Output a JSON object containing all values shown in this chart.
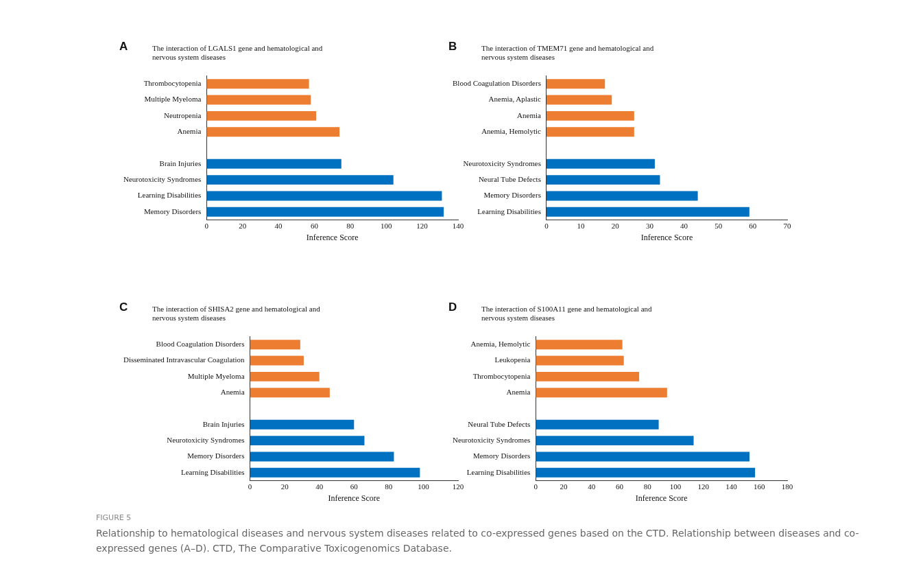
{
  "chart_data": [
    {
      "type": "bar",
      "orientation": "horizontal",
      "title": "The interaction of LGALS1 gene and hematological and nervous system diseases",
      "xlabel": "Inference Score",
      "annotations": [
        "A"
      ],
      "categories": [
        "Thrombocytopenia",
        "Multiple Myeloma",
        "Neutropenia",
        "Anemia",
        null,
        "Brain Injuries",
        "Neurotoxicity Syndromes",
        "Learning Disabilities",
        "Memory Disorders"
      ],
      "values": [
        57,
        58,
        61,
        74,
        null,
        75,
        104,
        131,
        132
      ],
      "colors": [
        "#ed7d31",
        "#ed7d31",
        "#ed7d31",
        "#ed7d31",
        "#0070c0",
        "#0070c0",
        "#0070c0",
        "#0070c0",
        "#0070c0"
      ],
      "xlim": [
        0,
        140
      ],
      "xticks": [
        0,
        20,
        40,
        60,
        80,
        100,
        120,
        140
      ],
      "grid": false
    },
    {
      "type": "bar",
      "orientation": "horizontal",
      "title": "The interaction of TMEM71 gene and hematological and nervous system diseases",
      "xlabel": "Inference Score",
      "annotations": [
        "B"
      ],
      "categories": [
        "Blood Coagulation Disorders",
        "Anemia, Aplastic",
        "Anemia",
        "Anemia, Hemolytic",
        null,
        "Neurotoxicity Syndromes",
        "Neural Tube Defects",
        "Memory Disorders",
        "Learning Disabilities"
      ],
      "values": [
        17,
        19,
        25.5,
        25.5,
        null,
        31.5,
        33,
        44,
        59
      ],
      "colors": [
        "#ed7d31",
        "#ed7d31",
        "#ed7d31",
        "#ed7d31",
        "#0070c0",
        "#0070c0",
        "#0070c0",
        "#0070c0",
        "#0070c0"
      ],
      "xlim": [
        0,
        70
      ],
      "xticks": [
        0,
        10,
        20,
        30,
        40,
        50,
        60,
        70
      ],
      "grid": false
    },
    {
      "type": "bar",
      "orientation": "horizontal",
      "title": "The interaction of SHISA2 gene and hematological and nervous system diseases",
      "xlabel": "Inference Score",
      "annotations": [
        "C"
      ],
      "categories": [
        "Blood Coagulation Disorders",
        "Disseminated Intravascular Coagulation",
        "Multiple Myeloma",
        "Anemia",
        null,
        "Brain Injuries",
        "Neurotoxicity Syndromes",
        "Memory Disorders",
        "Learning Disabilities"
      ],
      "values": [
        29,
        31,
        40,
        46,
        null,
        60,
        66,
        83,
        98
      ],
      "colors": [
        "#ed7d31",
        "#ed7d31",
        "#ed7d31",
        "#ed7d31",
        "#0070c0",
        "#0070c0",
        "#0070c0",
        "#0070c0",
        "#0070c0"
      ],
      "xlim": [
        0,
        120
      ],
      "xticks": [
        0,
        20,
        40,
        60,
        80,
        100,
        120
      ],
      "grid": false
    },
    {
      "type": "bar",
      "orientation": "horizontal",
      "title": "The interaction of S100A11 gene and hematological and nervous system diseases",
      "xlabel": "Inference Score",
      "annotations": [
        "D",
        "FIGURE 5",
        "Relationship to hematological diseases and nervous system diseases related to co-expressed genes based on the CTD. Relationship between diseases and co-expressed genes (A–D). CTD, The Comparative Toxicogenomics Database."
      ],
      "categories": [
        "Anemia, Hemolytic",
        "Leukopenia",
        "Thrombocytopenia",
        "Anemia",
        null,
        "Neural Tube Defects",
        "Neurotoxicity Syndromes",
        "Memory Disorders",
        "Learning Disabilities"
      ],
      "values": [
        62,
        63,
        74,
        94,
        null,
        88,
        113,
        153,
        157
      ],
      "colors": [
        "#ed7d31",
        "#ed7d31",
        "#ed7d31",
        "#ed7d31",
        "#0070c0",
        "#0070c0",
        "#0070c0",
        "#0070c0",
        "#0070c0"
      ],
      "xlim": [
        0,
        180
      ],
      "xticks": [
        0,
        20,
        40,
        60,
        80,
        100,
        120,
        140,
        160,
        180
      ],
      "grid": false
    }
  ]
}
